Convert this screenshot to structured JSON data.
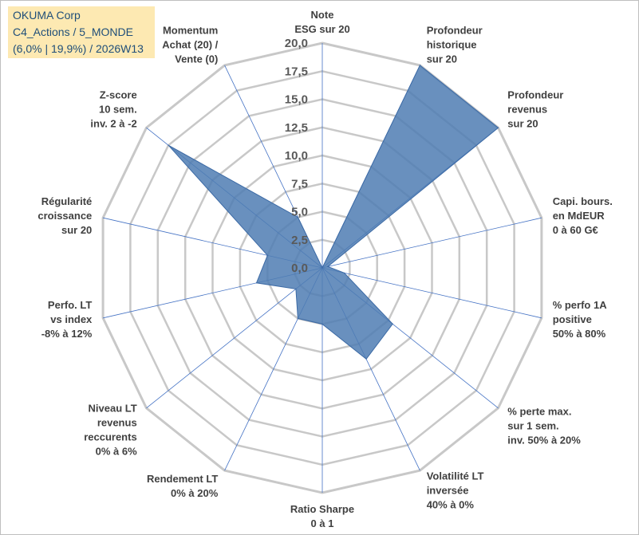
{
  "title_box": {
    "line1": "OKUMA Corp",
    "line2": "C4_Actions / 5_MONDE",
    "line3": "(6,0% | 19,9%) / 2026W13"
  },
  "colors": {
    "fill": "#4f7db3",
    "stroke": "#3c6aa5",
    "grid": "#c8c8c8",
    "spoke": "#4472c4",
    "title_bg": "#fde9b2",
    "title_text": "#1f4e79"
  },
  "chart_data": {
    "type": "radar",
    "rmax": 20,
    "ticks": [
      "0,0",
      "2,5",
      "5,0",
      "7,5",
      "10,0",
      "12,5",
      "15,0",
      "17,5",
      "20,0"
    ],
    "tick_values": [
      0,
      2.5,
      5,
      7.5,
      10,
      12.5,
      15,
      17.5,
      20
    ],
    "axes": [
      {
        "label": [
          "Note",
          "ESG sur 20"
        ],
        "value": 0
      },
      {
        "label": [
          "Profondeur",
          "historique",
          "sur 20"
        ],
        "value": 20
      },
      {
        "label": [
          "Profondeur",
          "revenus",
          "sur 20"
        ],
        "value": 20
      },
      {
        "label": [
          "Capi. bours.",
          "en MdEUR",
          "0 à 60 G€"
        ],
        "value": 0.5
      },
      {
        "label": [
          "% perfo 1A",
          "positive",
          "50% à 80%"
        ],
        "value": 2
      },
      {
        "label": [
          "% perte max.",
          "sur 1 sem.",
          "inv. 50% à 20%"
        ],
        "value": 8
      },
      {
        "label": [
          "Volatilité LT",
          "inversée",
          "40% à 0%"
        ],
        "value": 9
      },
      {
        "label": [
          "Ratio Sharpe",
          "0 à 1"
        ],
        "value": 5
      },
      {
        "label": [
          "Rendement LT",
          "0% à 20%"
        ],
        "value": 5
      },
      {
        "label": [
          "Niveau LT",
          "revenus",
          "reccurents",
          "0% à 6%"
        ],
        "value": 3
      },
      {
        "label": [
          "Perfo. LT",
          "vs index",
          "-8% à 12%"
        ],
        "value": 6
      },
      {
        "label": [
          "Régularité",
          "croissance",
          "sur 20"
        ],
        "value": 5
      },
      {
        "label": [
          "Z-score",
          "10 sem.",
          "inv. 2 à -2"
        ],
        "value": 17.5
      },
      {
        "label": [
          "Momentum",
          "Achat (20) /",
          "Vente (0)"
        ],
        "value": 5
      }
    ]
  }
}
